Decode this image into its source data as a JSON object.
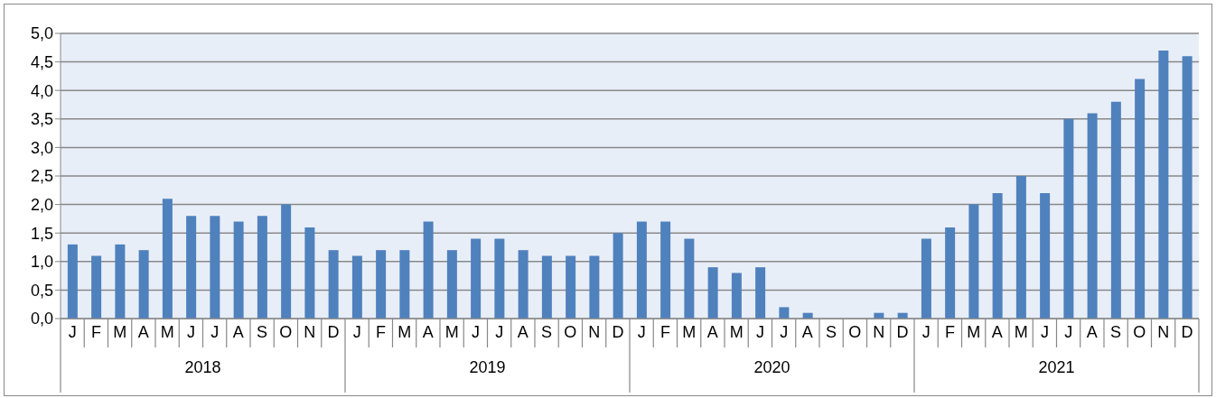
{
  "chart_data": {
    "type": "bar",
    "categories": [
      "J",
      "F",
      "M",
      "A",
      "M",
      "J",
      "J",
      "A",
      "S",
      "O",
      "N",
      "D",
      "J",
      "F",
      "M",
      "A",
      "M",
      "J",
      "J",
      "A",
      "S",
      "O",
      "N",
      "D",
      "J",
      "F",
      "M",
      "A",
      "M",
      "J",
      "J",
      "A",
      "S",
      "O",
      "N",
      "D",
      "J",
      "F",
      "M",
      "A",
      "M",
      "J",
      "J",
      "A",
      "S",
      "O",
      "N",
      "D"
    ],
    "values": [
      1.3,
      1.1,
      1.3,
      1.2,
      2.1,
      1.8,
      1.8,
      1.7,
      1.8,
      2.0,
      1.6,
      1.2,
      1.1,
      1.2,
      1.2,
      1.7,
      1.2,
      1.4,
      1.4,
      1.2,
      1.1,
      1.1,
      1.1,
      1.5,
      1.7,
      1.7,
      1.4,
      0.9,
      0.8,
      0.9,
      0.2,
      0.1,
      0,
      0,
      0.1,
      0.1,
      1.4,
      1.6,
      2.0,
      2.2,
      2.5,
      2.2,
      3.5,
      3.6,
      3.8,
      4.2,
      4.7,
      4.6
    ],
    "color": "#4f81bd",
    "ylim": [
      0,
      5
    ],
    "yticks": [
      {
        "value": 0,
        "label": "0,0"
      },
      {
        "value": 0.5,
        "label": "0,5"
      },
      {
        "value": 1,
        "label": "1,0"
      },
      {
        "value": 1.5,
        "label": "1,5"
      },
      {
        "value": 2,
        "label": "2,0"
      },
      {
        "value": 2.5,
        "label": "2,5"
      },
      {
        "value": 3,
        "label": "3,0"
      },
      {
        "value": 3.5,
        "label": "3,5"
      },
      {
        "value": 4,
        "label": "4,0"
      },
      {
        "value": 4.5,
        "label": "4,5"
      },
      {
        "value": 5,
        "label": "5,0"
      }
    ],
    "grid": "y",
    "annotations": [
      "2018",
      "2019",
      "2020",
      "2021"
    ]
  }
}
